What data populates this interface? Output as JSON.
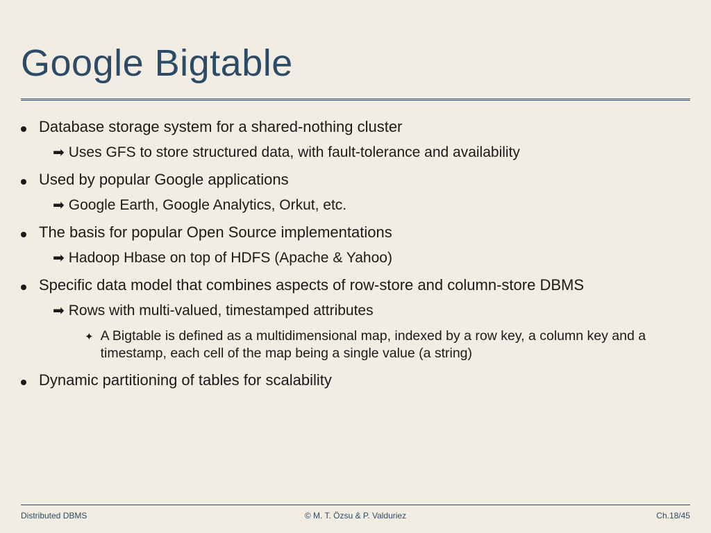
{
  "colors": {
    "background": "#f1ede2",
    "title": "#2d4a66",
    "text": "#1a1a1a",
    "divider": "#2d4a66",
    "footer_text": "#2d4a66"
  },
  "typography": {
    "title_fontsize": 54,
    "bullet_fontsize": 22,
    "sub_fontsize": 21,
    "subsub_fontsize": 19.5,
    "footer_fontsize": 12,
    "font_family": "Arial"
  },
  "title": "Google Bigtable",
  "bullets": [
    {
      "text": "Database storage system for a shared-nothing cluster",
      "subs": [
        {
          "text": "Uses GFS to store structured data, with fault-tolerance and availability"
        }
      ]
    },
    {
      "text": "Used by popular Google applications",
      "subs": [
        {
          "text": "Google Earth, Google Analytics, Orkut, etc."
        }
      ]
    },
    {
      "text": "The basis for popular Open Source implementations",
      "subs": [
        {
          "text": "Hadoop Hbase on top of HDFS (Apache & Yahoo)"
        }
      ]
    },
    {
      "text": "Specific data model that combines aspects of row-store and column-store DBMS",
      "subs": [
        {
          "text": "Rows with multi-valued, timestamped attributes",
          "subsubs": [
            {
              "text": "A Bigtable is defined as a multidimensional map, indexed by a row key, a column key and a timestamp, each cell of the map being a single value (a string)"
            }
          ]
        }
      ]
    },
    {
      "text": "Dynamic partitioning of tables for scalability",
      "subs": []
    }
  ],
  "footer": {
    "left": "Distributed DBMS",
    "center": "© M. T. Özsu & P. Valduriez",
    "right": "Ch.18/45"
  },
  "markers": {
    "bullet": "dot",
    "sub": "➡",
    "subsub": "✦"
  }
}
